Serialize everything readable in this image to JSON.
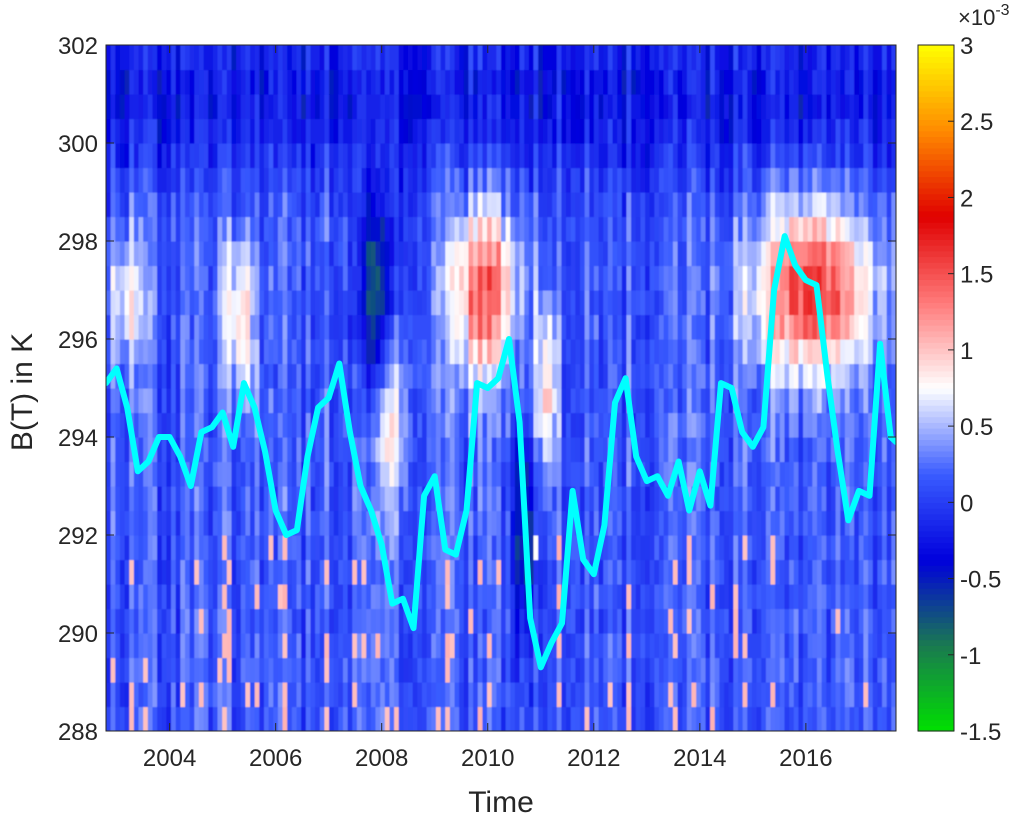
{
  "chart_data": {
    "type": "heatmap",
    "title": "",
    "xlabel": "Time",
    "ylabel": "B(T) in K",
    "xlim": [
      2002.8,
      2017.7
    ],
    "ylim": [
      288,
      302
    ],
    "x_ticks": [
      "2004",
      "2006",
      "2008",
      "2010",
      "2012",
      "2014",
      "2016"
    ],
    "y_ticks": [
      "288",
      "290",
      "292",
      "294",
      "296",
      "298",
      "300",
      "302"
    ],
    "colorbar": {
      "range": [
        -0.0015,
        0.003
      ],
      "tick_labels": [
        "-1.5",
        "-1",
        "-0.5",
        "0",
        "0.5",
        "1",
        "1.5",
        "2",
        "2.5",
        "3"
      ],
      "scale_label_base": "×10",
      "scale_label_exp": "-3",
      "colors": [
        "#00e000",
        "#1a7a50",
        "#0000dd",
        "#3a5cff",
        "#ffffff",
        "#ff7a7a",
        "#e00000",
        "#ff8a00",
        "#ffff00"
      ]
    },
    "colors": {
      "line": "#00ffff",
      "background": "#2b49f0"
    },
    "heatmap_notes": "Background values mostly near 0 (blue); elevated red band around B=295-298.5 K during 2009-2010 and 2015-2017; isolated red streaks near 2003, 2005, 2008, 2011; green (negative) streaks near 2006, 2008, 2010-2011.",
    "series": [
      {
        "type": "line",
        "x": [
          2002.8,
          2003.0,
          2003.2,
          2003.4,
          2003.6,
          2003.8,
          2004.0,
          2004.2,
          2004.4,
          2004.6,
          2004.8,
          2005.0,
          2005.2,
          2005.4,
          2005.6,
          2005.8,
          2006.0,
          2006.2,
          2006.4,
          2006.6,
          2006.8,
          2007.0,
          2007.2,
          2007.4,
          2007.6,
          2007.8,
          2008.0,
          2008.2,
          2008.4,
          2008.6,
          2008.8,
          2009.0,
          2009.2,
          2009.4,
          2009.6,
          2009.8,
          2010.0,
          2010.2,
          2010.4,
          2010.6,
          2010.8,
          2011.0,
          2011.2,
          2011.4,
          2011.6,
          2011.8,
          2012.0,
          2012.2,
          2012.4,
          2012.6,
          2012.8,
          2013.0,
          2013.2,
          2013.4,
          2013.6,
          2013.8,
          2014.0,
          2014.2,
          2014.4,
          2014.6,
          2014.8,
          2015.0,
          2015.2,
          2015.4,
          2015.6,
          2015.8,
          2016.0,
          2016.2,
          2016.4,
          2016.6,
          2016.8,
          2017.0,
          2017.2,
          2017.4,
          2017.6,
          2017.7
        ],
        "y": [
          295.1,
          295.4,
          294.6,
          293.3,
          293.5,
          294.0,
          294.0,
          293.6,
          293.0,
          294.1,
          294.2,
          294.5,
          293.8,
          295.1,
          294.6,
          293.7,
          292.5,
          292.0,
          292.1,
          293.6,
          294.6,
          294.8,
          295.5,
          294.1,
          293.0,
          292.5,
          291.8,
          290.6,
          290.7,
          290.1,
          292.8,
          293.2,
          291.7,
          291.6,
          292.5,
          295.1,
          295.0,
          295.2,
          296.0,
          294.3,
          290.3,
          289.3,
          289.8,
          290.2,
          292.9,
          291.5,
          291.2,
          292.2,
          294.7,
          295.2,
          293.6,
          293.1,
          293.2,
          292.8,
          293.5,
          292.5,
          293.3,
          292.6,
          295.1,
          295.0,
          294.1,
          293.8,
          294.2,
          297.0,
          298.1,
          297.5,
          297.2,
          297.1,
          295.3,
          293.7,
          292.3,
          292.9,
          292.8,
          295.9,
          294.0,
          293.9
        ]
      }
    ]
  }
}
